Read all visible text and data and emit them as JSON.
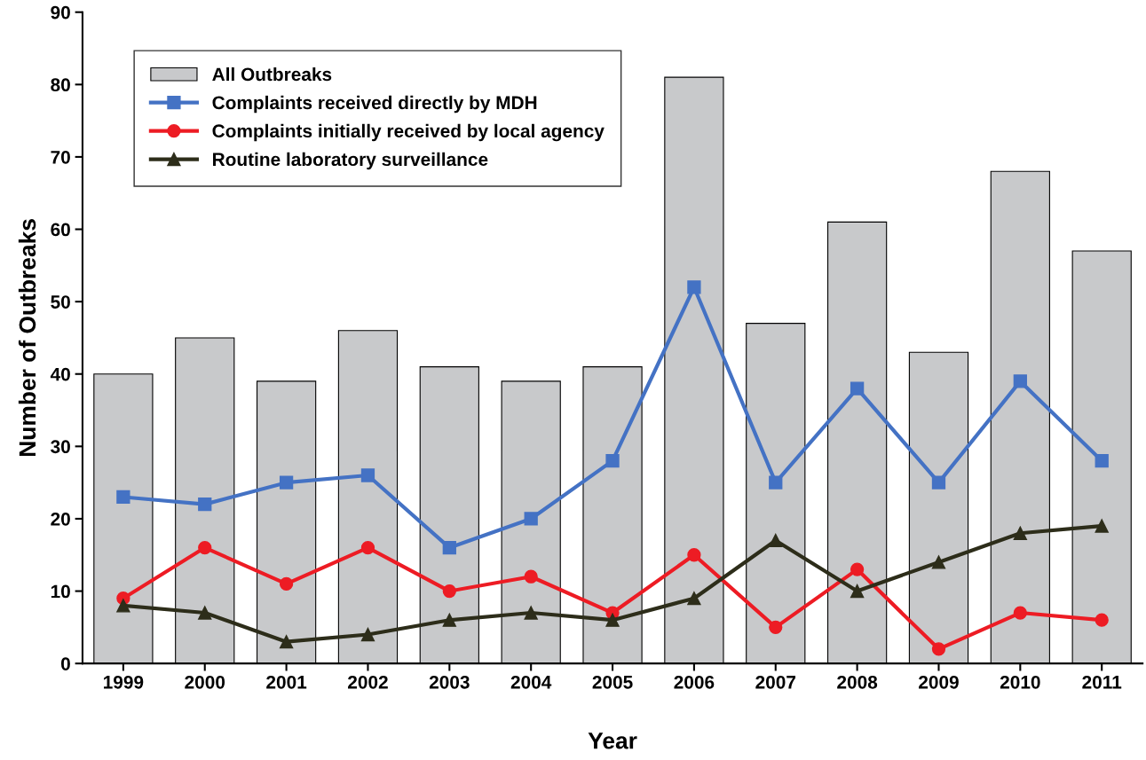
{
  "chart_data": {
    "type": "bar",
    "xlabel": "Year",
    "ylabel": "Number of Outbreaks",
    "categories": [
      "1999",
      "2000",
      "2001",
      "2002",
      "2003",
      "2004",
      "2005",
      "2006",
      "2007",
      "2008",
      "2009",
      "2010",
      "2011"
    ],
    "series": [
      {
        "name": "All Outbreaks",
        "color": "#c8c9cb",
        "values": [
          40,
          45,
          39,
          46,
          41,
          39,
          41,
          81,
          47,
          61,
          43,
          68,
          57
        ]
      },
      {
        "name": "Complaints received directly by MDH",
        "type": "line",
        "marker": "square",
        "color": "#4472c4",
        "values": [
          23,
          22,
          25,
          26,
          16,
          20,
          28,
          52,
          25,
          38,
          25,
          39,
          28
        ]
      },
      {
        "name": "Complaints initially received by local agency",
        "type": "line",
        "marker": "circle",
        "color": "#ed1c24",
        "values": [
          9,
          16,
          11,
          16,
          10,
          12,
          7,
          15,
          5,
          13,
          2,
          7,
          6
        ]
      },
      {
        "name": "Routine laboratory surveillance",
        "type": "line",
        "marker": "triangle",
        "color": "#2d2d1a",
        "values": [
          8,
          7,
          3,
          4,
          6,
          7,
          6,
          9,
          17,
          10,
          14,
          18,
          19
        ]
      }
    ],
    "ylim": [
      0,
      90
    ],
    "yticks": [
      0,
      10,
      20,
      30,
      40,
      50,
      60,
      70,
      80,
      90
    ],
    "grid": false,
    "legend": "top left"
  }
}
